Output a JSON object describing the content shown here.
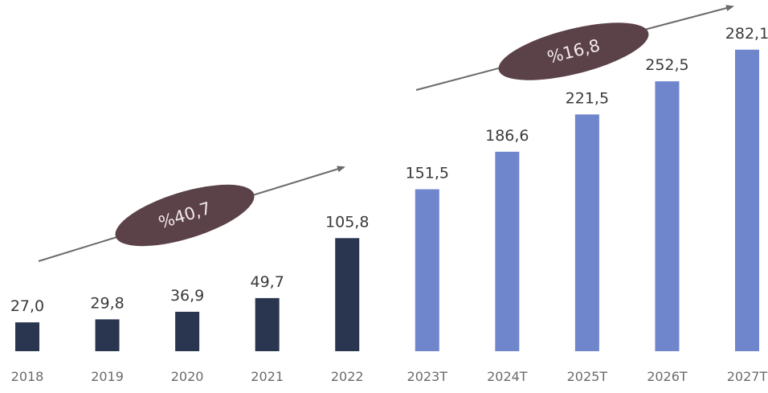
{
  "chart_data": {
    "type": "bar",
    "categories": [
      "2018",
      "2019",
      "2020",
      "2021",
      "2022",
      "2023T",
      "2024T",
      "2025T",
      "2026T",
      "2027T"
    ],
    "values": [
      27.0,
      29.8,
      36.9,
      49.7,
      105.8,
      151.5,
      186.6,
      221.5,
      252.5,
      282.1
    ],
    "value_labels": [
      "27,0",
      "29,8",
      "36,9",
      "49,7",
      "105,8",
      "151,5",
      "186,6",
      "221,5",
      "252,5",
      "282,1"
    ],
    "colors": {
      "actual": "#2a3550",
      "forecast": "#6f86cd",
      "arrow": "#6a6a6a",
      "badge": "#5b4148"
    },
    "growth_annotations": [
      {
        "label": "%40,7",
        "from_category": "2018",
        "to_category": "2022"
      },
      {
        "label": "%16,8",
        "from_category": "2023T",
        "to_category": "2027T"
      }
    ],
    "title": "",
    "xlabel": "",
    "ylabel": "",
    "grid": false,
    "legend": "none"
  }
}
